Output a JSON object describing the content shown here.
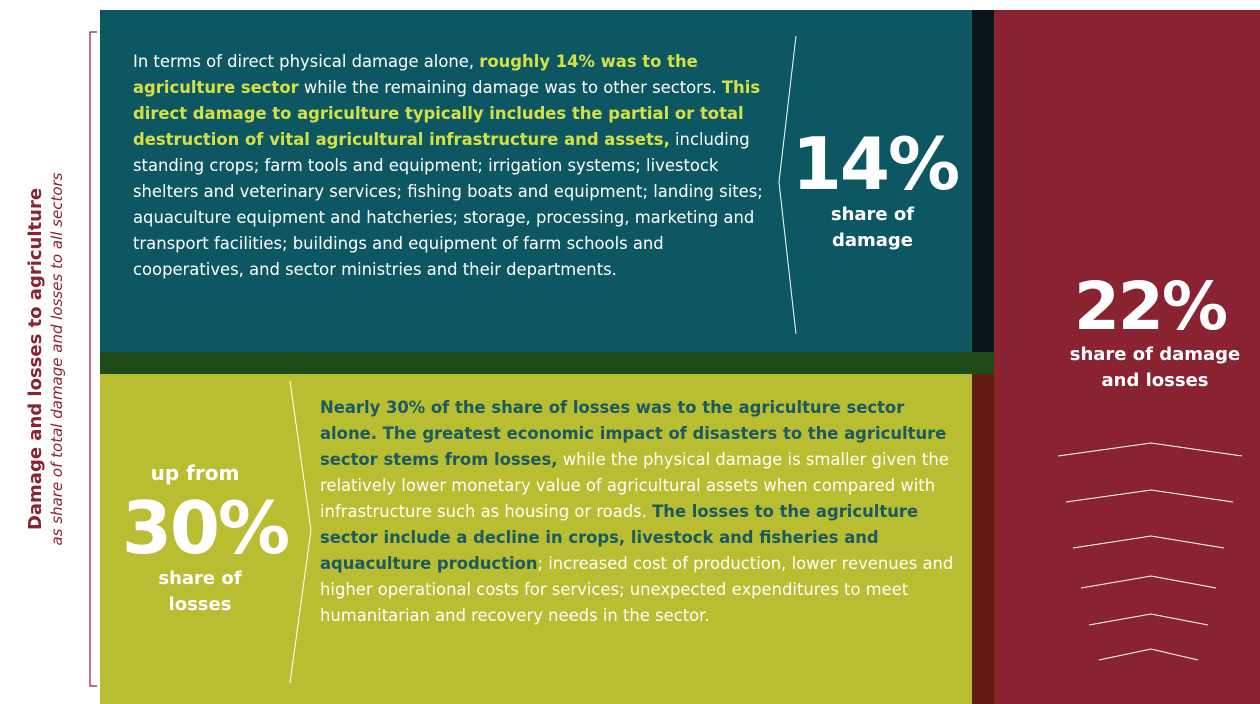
{
  "side_label": {
    "title": "Damage and losses to agriculture",
    "subtitle": "as share of total damage and losses to all sectors"
  },
  "damage": {
    "paragraph": [
      {
        "text": "In terms of direct physical damage alone, ",
        "bold": false
      },
      {
        "text": "roughly 14% was to the agriculture sector",
        "bold": true
      },
      {
        "text": " while the remaining damage was to other sectors. ",
        "bold": false
      },
      {
        "text": "This direct damage to agriculture typically includes the partial or total destruction of vital agricultural infrastructure and assets,",
        "bold": true
      },
      {
        "text": " including standing crops; farm tools and equipment; irrigation systems; livestock shelters and veterinary services; fishing boats and equipment; landing sites; aquaculture equipment and hatcheries; storage, processing, marketing and transport facilities; buildings and equipment of farm schools and cooperatives, and sector ministries and their departments.",
        "bold": false
      }
    ],
    "figure": "14%",
    "caption": "share of damage"
  },
  "losses": {
    "prefix": "up from",
    "figure": "30%",
    "caption": "share of losses",
    "paragraph": [
      {
        "text": "Nearly 30% of the share of losses was to the agriculture sector alone. The greatest economic impact of disasters to the agriculture sector stems from losses,",
        "bold": true
      },
      {
        "text": " while the physical damage is smaller given the relatively lower monetary value of agricultural assets when compared with infrastructure such as housing or roads. ",
        "bold": false
      },
      {
        "text": "The losses to the agriculture sector include a decline in crops, livestock and fisheries and aquaculture production",
        "bold": true
      },
      {
        "text": "; increased cost of production, lower revenues and higher operational costs for services; unexpected expenditures to meet humanitarian and recovery needs in the sector.",
        "bold": false
      }
    ]
  },
  "total": {
    "figure": "22%",
    "caption": "share of damage and losses"
  }
}
